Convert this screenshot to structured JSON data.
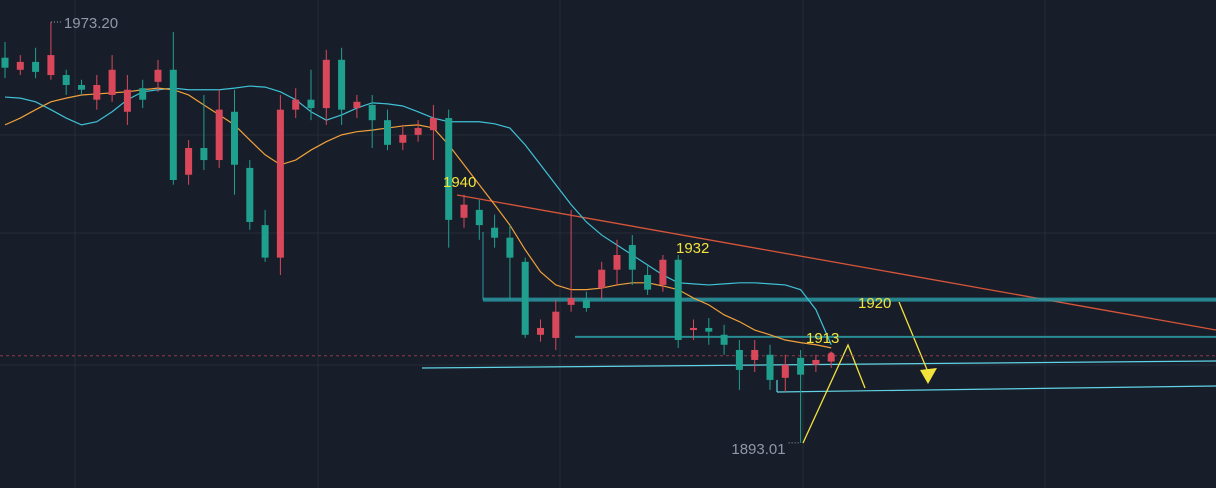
{
  "chart_data": {
    "type": "candlestick",
    "ylim": [
      1884.4,
      1977.4
    ],
    "up_color": "#d9475b",
    "down_color": "#1fa08e",
    "open": [
      1966.4,
      1964.1,
      1965.6,
      1963.1,
      1963.1,
      1961.2,
      1958.4,
      1959.3,
      1956.1,
      1960.6,
      1961.8,
      1964.1,
      1944.1,
      1949.2,
      1946.9,
      1956.1,
      1945.4,
      1934.5,
      1928.3,
      1956.5,
      1958.4,
      1956.8,
      1966.0,
      1956.8,
      1957.4,
      1954.5,
      1950.2,
      1951.7,
      1952.6,
      1954.9,
      1935.9,
      1937.4,
      1934.0,
      1932.1,
      1927.5,
      1913.6,
      1913.0,
      1919.3,
      1920.3,
      1922.5,
      1926.0,
      1930.7,
      1925.0,
      1923.1,
      1927.9,
      1914.5,
      1914.9,
      1913.6,
      1910.7,
      1908.8,
      1909.8,
      1905.4,
      1909.2,
      1907.9,
      1908.5
    ],
    "high": [
      1969.4,
      1966.9,
      1968.3,
      1973.2,
      1964.1,
      1962.2,
      1963.1,
      1966.9,
      1963.1,
      1962.2,
      1966.0,
      1971.3,
      1950.7,
      1959.3,
      1960.3,
      1960.3,
      1946.9,
      1937.4,
      1959.3,
      1960.6,
      1964.1,
      1967.9,
      1968.3,
      1959.3,
      1959.3,
      1956.5,
      1953.6,
      1954.5,
      1957.4,
      1956.5,
      1940.3,
      1939.3,
      1936.5,
      1934.5,
      1928.3,
      1916.5,
      1920.3,
      1937.4,
      1921.8,
      1927.5,
      1931.7,
      1932.6,
      1926.9,
      1928.8,
      1928.8,
      1916.5,
      1916.8,
      1915.5,
      1912.6,
      1912.6,
      1911.7,
      1909.8,
      1910.7,
      1909.8,
      1910.4
    ],
    "low": [
      1962.5,
      1963.1,
      1962.5,
      1962.2,
      1959.3,
      1959.3,
      1956.5,
      1958.0,
      1953.6,
      1956.8,
      1959.9,
      1942.2,
      1942.2,
      1945.0,
      1945.4,
      1940.3,
      1933.6,
      1927.5,
      1925.0,
      1954.9,
      1954.5,
      1953.6,
      1953.6,
      1954.9,
      1949.2,
      1948.8,
      1948.8,
      1950.4,
      1946.9,
      1930.2,
      1934.0,
      1931.7,
      1930.2,
      1920.3,
      1913.0,
      1912.3,
      1910.7,
      1918.0,
      1918.0,
      1920.3,
      1923.1,
      1923.1,
      1921.2,
      1921.8,
      1911.1,
      1912.6,
      1911.7,
      1909.8,
      1903.1,
      1906.5,
      1903.1,
      1902.7,
      1893.01,
      1906.5,
      1907.3
    ],
    "close": [
      1964.5,
      1965.6,
      1963.7,
      1966.9,
      1961.2,
      1960.3,
      1961.2,
      1964.1,
      1960.3,
      1958.4,
      1964.1,
      1943.1,
      1949.2,
      1946.9,
      1956.5,
      1946.0,
      1935.1,
      1928.3,
      1956.5,
      1958.4,
      1956.8,
      1966.0,
      1956.5,
      1958.0,
      1954.5,
      1949.8,
      1951.7,
      1953.0,
      1954.9,
      1935.5,
      1938.4,
      1934.5,
      1932.1,
      1928.3,
      1913.6,
      1914.9,
      1918.0,
      1920.6,
      1918.7,
      1926.0,
      1928.8,
      1926.0,
      1922.2,
      1927.9,
      1912.6,
      1914.9,
      1914.2,
      1911.7,
      1906.9,
      1910.7,
      1905.0,
      1907.9,
      1906.0,
      1908.8,
      1909.6
    ],
    "ma": [
      {
        "color": "#3fc1d6",
        "values": [
          1958.9,
          1958.7,
          1958.0,
          1956.5,
          1954.9,
          1953.6,
          1954.2,
          1956.1,
          1958.4,
          1959.9,
          1960.3,
          1960.6,
          1960.3,
          1960.3,
          1960.3,
          1960.6,
          1961.0,
          1960.8,
          1959.9,
          1958.4,
          1956.1,
          1954.5,
          1955.5,
          1956.8,
          1957.8,
          1957.6,
          1957.2,
          1956.1,
          1954.9,
          1954.2,
          1954.2,
          1954.2,
          1953.8,
          1953.0,
          1949.8,
          1946.0,
          1942.2,
          1938.4,
          1935.1,
          1932.6,
          1930.7,
          1928.8,
          1926.9,
          1925.0,
          1923.5,
          1923.3,
          1923.1,
          1923.3,
          1923.5,
          1923.5,
          1923.3,
          1923.1,
          1922.2,
          1918.4,
          1911.7
        ]
      },
      {
        "color": "#efa03a",
        "values": [
          1953.6,
          1954.9,
          1956.5,
          1958.0,
          1958.7,
          1959.3,
          1959.5,
          1959.7,
          1959.9,
          1960.3,
          1960.6,
          1960.3,
          1959.3,
          1957.4,
          1955.5,
          1953.6,
          1950.7,
          1947.9,
          1946.0,
          1946.9,
          1948.8,
          1950.4,
          1951.7,
          1952.3,
          1952.6,
          1953.0,
          1953.4,
          1953.6,
          1953.0,
          1949.8,
          1946.0,
          1942.2,
          1938.4,
          1934.5,
          1929.8,
          1925.6,
          1923.1,
          1922.2,
          1922.2,
          1922.5,
          1923.1,
          1923.5,
          1923.5,
          1922.9,
          1922.2,
          1920.6,
          1919.3,
          1917.4,
          1916.1,
          1914.5,
          1913.6,
          1912.6,
          1912.1,
          1911.7,
          1911.1
        ]
      }
    ],
    "levels": [
      {
        "value": 1920.3,
        "color": "#2a97a2"
      },
      {
        "value": 1913.2,
        "color": "#2c9ea6"
      }
    ],
    "extreme_labels": {
      "high": "1973.20",
      "low": "1893.01"
    },
    "annotations": [
      "1940",
      "1932",
      "1920",
      "1913"
    ],
    "annotation_color": "#f2e33c"
  }
}
